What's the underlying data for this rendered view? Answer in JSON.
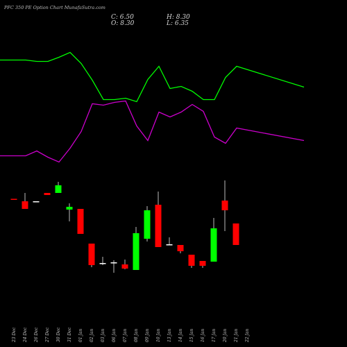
{
  "header": {
    "title": "PFC 350 PE Option Chart MunafaSutra.com",
    "close_label": "C: 6.50",
    "open_label": "O: 8.30",
    "high_label": "H: 8.30",
    "low_label": "L: 6.35"
  },
  "colors": {
    "background": "#000000",
    "up": "#00ff00",
    "down": "#ff0000",
    "doji": "#ffffff",
    "wick": "#bbbbbb",
    "line_1": "#00ff00",
    "line_2": "#cc00cc"
  },
  "chart_data": [
    {
      "type": "line",
      "categories": [
        "23 Dec",
        "24 Dec",
        "26 Dec",
        "27 Dec",
        "30 Dec",
        "31 Dec",
        "01 Jan",
        "02 Jan",
        "03 Jan",
        "06 Jan",
        "07 Jan",
        "08 Jan",
        "09 Jan",
        "10 Jan",
        "13 Jan",
        "14 Jan",
        "15 Jan",
        "16 Jan",
        "17 Jan",
        "20 Jan",
        "21 Jan",
        "22 Jan"
      ],
      "series": [
        {
          "color": "#00ff00",
          "values": [
            86.5,
            86.5,
            88.5,
            88.5,
            82.5,
            75.5,
            91.5,
            115.5,
            143.5,
            143.5,
            141.5,
            146.5,
            114.5,
            95.5,
            127.5,
            124.5,
            131.5,
            143.5,
            143.5,
            111.5,
            95.5,
            125.5
          ]
        },
        {
          "color": "#cc00cc",
          "values": [
            224.5,
            224.5,
            217.5,
            226.5,
            233.5,
            213.5,
            189.5,
            149.5,
            151.5,
            147.5,
            145.5,
            181.5,
            202.5,
            161.5,
            168.5,
            161.5,
            150.5,
            160.5,
            197.5,
            206.5,
            184.5,
            202.5
          ]
        }
      ]
    },
    {
      "type": "candlestick",
      "categories": [
        "23 Dec",
        "24 Dec",
        "26 Dec",
        "27 Dec",
        "30 Dec",
        "31 Dec",
        "01 Jan",
        "02 Jan",
        "03 Jan",
        "06 Jan",
        "07 Jan",
        "08 Jan",
        "09 Jan",
        "10 Jan",
        "13 Jan",
        "14 Jan",
        "15 Jan",
        "16 Jan",
        "17 Jan",
        "20 Jan",
        "21 Jan",
        "22 Jan"
      ],
      "ohlc": [
        [
          286.5,
          286.5,
          286.5,
          286.5
        ],
        [
          290,
          278,
          301,
          301
        ],
        [
          290,
          290,
          290,
          290
        ],
        [
          278,
          278,
          281,
          281
        ],
        [
          278,
          262,
          278,
          267
        ],
        [
          302,
          293,
          319,
          298
        ],
        [
          301,
          301,
          337,
          337
        ],
        [
          351,
          351,
          385,
          382
        ],
        [
          379,
          370,
          382,
          380
        ],
        [
          379,
          375,
          393,
          378
        ],
        [
          381,
          374,
          388,
          387
        ],
        [
          389,
          327,
          389,
          336
        ],
        [
          344,
          297,
          348,
          303
        ],
        [
          295,
          276,
          356,
          356
        ],
        [
          352,
          342,
          353,
          352
        ],
        [
          353,
          353,
          365,
          362
        ],
        [
          367,
          367,
          386,
          383
        ],
        [
          376,
          376,
          386,
          383
        ],
        [
          377,
          314,
          377,
          329
        ],
        [
          289,
          260,
          333,
          303
        ],
        [
          322,
          322,
          353,
          353
        ],
        [
          0,
          0,
          0,
          0
        ]
      ],
      "note": "values are inverted price levels read on the chart's own vertical scale"
    }
  ]
}
